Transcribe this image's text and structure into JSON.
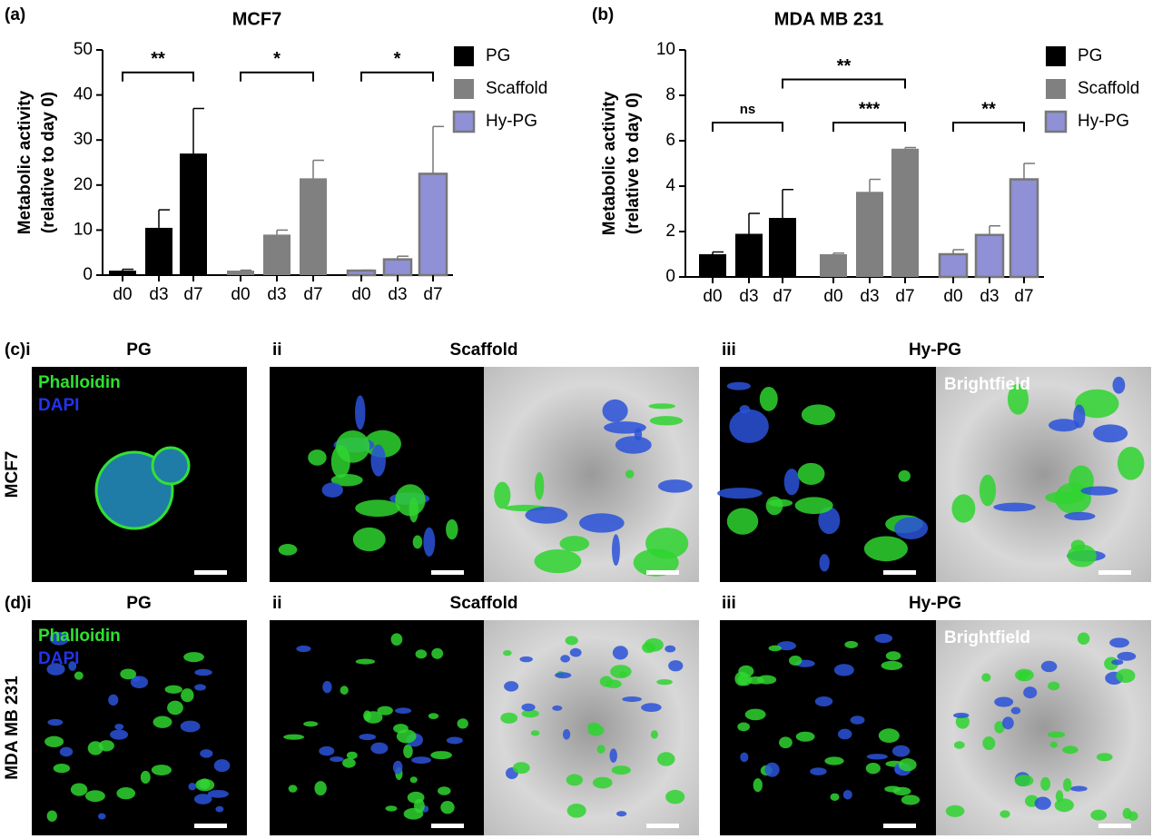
{
  "chart_data": [
    {
      "type": "bar",
      "panel_label": "(a)",
      "title": "MCF7",
      "y_label": [
        "Metabolic activity",
        "(relative to day 0)"
      ],
      "categories": [
        "d0",
        "d3",
        "d7"
      ],
      "series": [
        {
          "name": "PG",
          "color": "#000000",
          "values": [
            1,
            10.5,
            27
          ],
          "errors": [
            0.3,
            4,
            10
          ]
        },
        {
          "name": "Scaffold",
          "color": "#808080",
          "values": [
            1,
            9,
            21.5
          ],
          "errors": [
            0.1,
            1,
            4
          ]
        },
        {
          "name": "Hy-PG",
          "color": "#8f90d6",
          "values": [
            1,
            3.5,
            22.5
          ],
          "errors": [
            0.1,
            0.7,
            10.5
          ]
        }
      ],
      "annotations": [
        "**",
        "*",
        "*"
      ],
      "ylim": [
        0,
        50
      ],
      "yticks": [
        0,
        10,
        20,
        30,
        40,
        50
      ]
    },
    {
      "type": "bar",
      "panel_label": "(b)",
      "title": "MDA MB 231",
      "y_label": [
        "Metabolic activity",
        "(relative to day 0)"
      ],
      "categories": [
        "d0",
        "d3",
        "d7"
      ],
      "series": [
        {
          "name": "PG",
          "color": "#000000",
          "values": [
            1,
            1.9,
            2.6
          ],
          "errors": [
            0.1,
            0.9,
            1.25
          ]
        },
        {
          "name": "Scaffold",
          "color": "#808080",
          "values": [
            1,
            3.75,
            5.65
          ],
          "errors": [
            0.05,
            0.55,
            0.05
          ]
        },
        {
          "name": "Hy-PG",
          "color": "#8f90d6",
          "values": [
            1,
            1.85,
            4.3
          ],
          "errors": [
            0.2,
            0.4,
            0.7
          ]
        }
      ],
      "annotations": [
        "ns",
        "**",
        "***",
        "**"
      ],
      "ylim": [
        0,
        10
      ],
      "yticks": [
        0,
        2,
        4,
        6,
        8,
        10
      ]
    }
  ],
  "image_rows": [
    {
      "label": "(c)i",
      "row_label": "MCF7",
      "titles": [
        "PG",
        "Scaffold",
        "Hy-PG"
      ],
      "sub_labels": [
        "ii",
        "iii"
      ],
      "stains": [
        "Phalloidin",
        "DAPI"
      ],
      "brightfield": "Brightfield"
    },
    {
      "label": "(d)i",
      "row_label": "MDA MB 231",
      "titles": [
        "PG",
        "Scaffold",
        "Hy-PG"
      ],
      "sub_labels": [
        "ii",
        "iii"
      ],
      "stains": [
        "Phalloidin",
        "DAPI"
      ],
      "brightfield": "Brightfield"
    }
  ]
}
